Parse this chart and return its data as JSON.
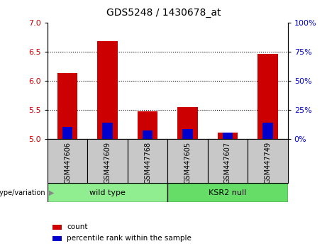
{
  "title": "GDS5248 / 1430678_at",
  "samples": [
    "GSM447606",
    "GSM447609",
    "GSM447768",
    "GSM447605",
    "GSM447607",
    "GSM447749"
  ],
  "count_values": [
    6.13,
    6.68,
    5.48,
    5.55,
    5.12,
    6.46
  ],
  "percentile_values": [
    10.5,
    14.0,
    7.5,
    8.5,
    5.5,
    14.5
  ],
  "ylim_left": [
    5.0,
    7.0
  ],
  "ylim_right": [
    0,
    100
  ],
  "yticks_left": [
    5.0,
    5.5,
    6.0,
    6.5,
    7.0
  ],
  "yticks_right": [
    0,
    25,
    50,
    75,
    100
  ],
  "count_color": "#cc0000",
  "percentile_color": "#0000cc",
  "groups": [
    {
      "label": "wild type",
      "indices": [
        0,
        1,
        2
      ],
      "color": "#90ee90"
    },
    {
      "label": "KSR2 null",
      "indices": [
        3,
        4,
        5
      ],
      "color": "#66dd66"
    }
  ],
  "genotype_label": "genotype/variation",
  "legend_items": [
    {
      "label": "count",
      "color": "#cc0000"
    },
    {
      "label": "percentile rank within the sample",
      "color": "#0000cc"
    }
  ],
  "tick_label_color_left": "#cc0000",
  "tick_label_color_right": "#0000cc",
  "sample_box_color": "#c8c8c8",
  "plot_bg_color": "#ffffff"
}
